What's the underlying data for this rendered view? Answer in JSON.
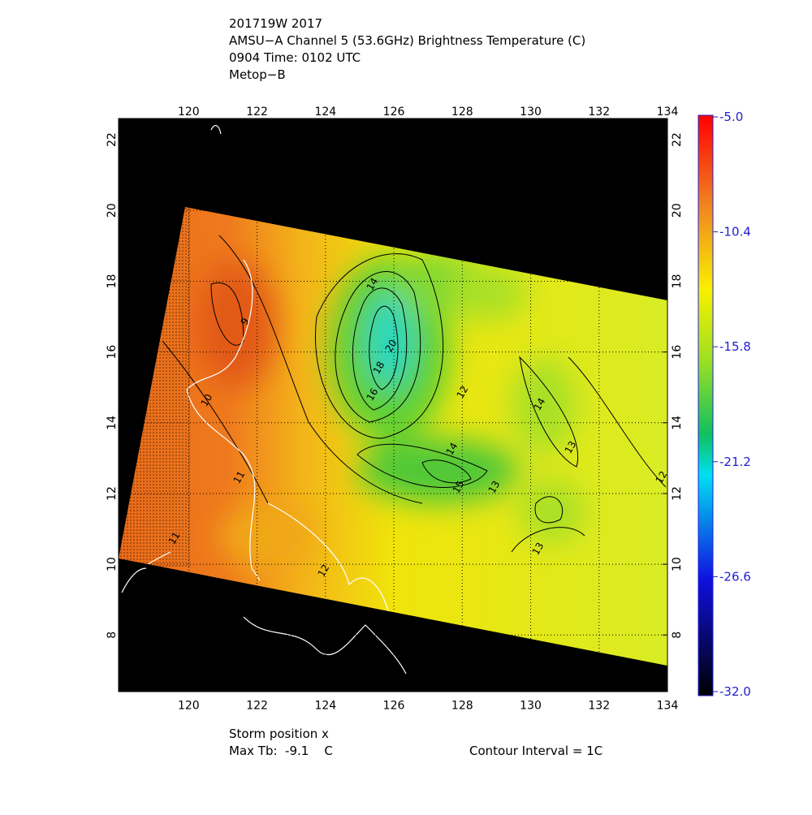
{
  "header": {
    "lines": [
      "201719W 2017",
      "AMSU−A Channel 5 (53.6GHz) Brightness Temperature (C)",
      "0904 Time: 0102 UTC",
      "Metop−B"
    ]
  },
  "map": {
    "xlim": [
      117.95,
      134.0
    ],
    "ylim": [
      6.4,
      22.6
    ],
    "lon_ticks": [
      120,
      122,
      124,
      126,
      128,
      130,
      132,
      134
    ],
    "lat_ticks": [
      8,
      10,
      12,
      14,
      16,
      18,
      20,
      22
    ],
    "contour_labels": [
      "14",
      "20",
      "18",
      "16",
      "12",
      "9",
      "10",
      "11",
      "14",
      "13",
      "15",
      "14",
      "13",
      "12",
      "13",
      "12",
      "11"
    ]
  },
  "colorbar": {
    "labels": [
      "-5.0",
      "-10.4",
      "-15.8",
      "-21.2",
      "-26.6",
      "-32.0"
    ]
  },
  "footer": {
    "storm": "Storm position x",
    "max_tb": "Max Tb:  -9.1    C",
    "contour": "Contour Interval = 1C"
  }
}
